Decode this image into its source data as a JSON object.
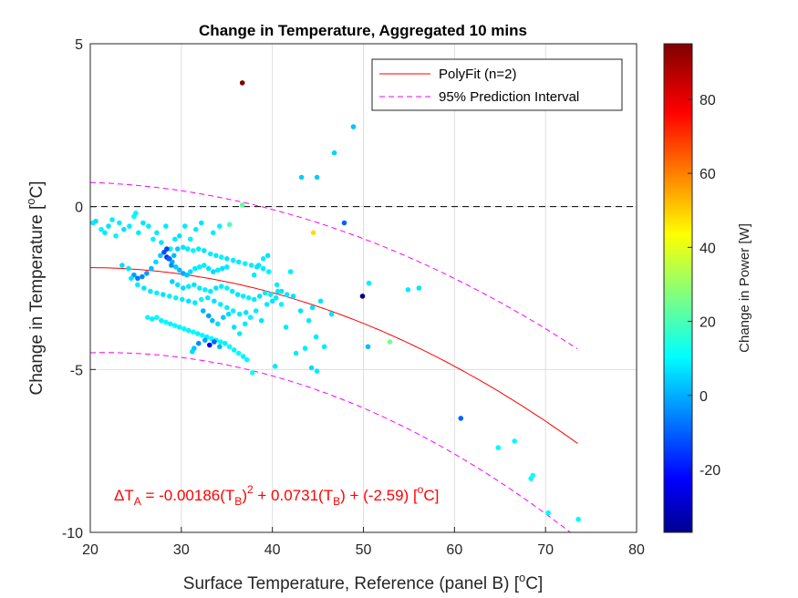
{
  "chart_data": {
    "type": "scatter",
    "title": "Change in Temperature, Aggregated 10 mins",
    "xlabel_text": "Surface Temperature, Reference (panel B) [",
    "xlabel_sup": "o",
    "xlabel_tail": "C]",
    "ylabel_text": "Change in Temperature [",
    "ylabel_sup": "o",
    "ylabel_tail": "C]",
    "xlim": [
      20,
      80
    ],
    "ylim": [
      -10,
      5
    ],
    "xticks": [
      "20",
      "30",
      "40",
      "50",
      "60",
      "70",
      "80"
    ],
    "yticks": [
      "-10",
      "-5",
      "0",
      "5"
    ],
    "grid": true,
    "legend_position": "top-right",
    "legend": [
      {
        "label": "PolyFit (n=2)",
        "color": "#ff0000",
        "style": "solid"
      },
      {
        "label": "95% Prediction Interval",
        "color": "#ff00ff",
        "style": "dashed"
      }
    ],
    "colorbar": {
      "label": "Change in Power [W]",
      "limits": [
        -37,
        95
      ],
      "ticks": [
        "-20",
        "0",
        "20",
        "40",
        "60",
        "80"
      ],
      "colormap": "jet"
    },
    "fit": {
      "a2": -0.00186,
      "a1": 0.0731,
      "a0": -2.59,
      "x_range": [
        20,
        73.5
      ],
      "pi_half_width": 2.55
    },
    "equation": {
      "p1": "ΔT",
      "s1": "A",
      "p2": " = -0.00186(T",
      "s2": "B",
      "p3": ")",
      "sup": "2",
      "p4": " + 0.0731(T",
      "s3": "B",
      "p5": ") + (-2.59)   [",
      "sup2": "o",
      "p6": "C]"
    },
    "reference_line_y": 0,
    "colors": {
      "fit": "#ff0000",
      "interval": "#ff00ff",
      "grid": "#dfdfdf",
      "zero_line": "#000000"
    },
    "points": [
      [
        20.3,
        -0.5,
        10
      ],
      [
        20.6,
        -0.45,
        9
      ],
      [
        21.2,
        -0.7,
        11
      ],
      [
        21.6,
        -0.8,
        10
      ],
      [
        22.0,
        -0.6,
        9
      ],
      [
        22.4,
        -0.4,
        10
      ],
      [
        22.8,
        -0.9,
        11
      ],
      [
        23.2,
        -0.5,
        10
      ],
      [
        23.7,
        -0.7,
        9
      ],
      [
        24.3,
        -0.6,
        10
      ],
      [
        24.8,
        -0.3,
        12
      ],
      [
        25.0,
        -0.2,
        11
      ],
      [
        25.3,
        -0.8,
        10
      ],
      [
        25.8,
        -0.5,
        9
      ],
      [
        26.4,
        -0.6,
        10
      ],
      [
        26.9,
        -1.0,
        11
      ],
      [
        27.3,
        -0.8,
        10
      ],
      [
        27.8,
        -1.1,
        9
      ],
      [
        28.3,
        -0.6,
        10
      ],
      [
        28.8,
        -1.3,
        11
      ],
      [
        29.3,
        -1.0,
        10
      ],
      [
        29.8,
        -0.9,
        9
      ],
      [
        30.4,
        -0.6,
        10
      ],
      [
        31.0,
        -1.0,
        11
      ],
      [
        31.6,
        -0.7,
        10
      ],
      [
        32.2,
        -0.5,
        9
      ],
      [
        33.5,
        -0.8,
        10
      ],
      [
        34.2,
        -0.6,
        11
      ],
      [
        35.3,
        -0.55,
        22
      ],
      [
        36.7,
        0.05,
        25
      ],
      [
        36.7,
        3.8,
        95
      ],
      [
        23.5,
        -1.8,
        8
      ],
      [
        24.2,
        -1.9,
        9
      ],
      [
        24.8,
        -2.1,
        0
      ],
      [
        25.2,
        -2.2,
        -5
      ],
      [
        25.7,
        -2.15,
        -3
      ],
      [
        26.2,
        -2.05,
        0
      ],
      [
        26.7,
        -1.9,
        4
      ],
      [
        27.2,
        -1.7,
        8
      ],
      [
        27.7,
        -1.5,
        6
      ],
      [
        28.1,
        -1.4,
        -10
      ],
      [
        28.4,
        -1.55,
        -15
      ],
      [
        28.7,
        -1.6,
        -5
      ],
      [
        29.0,
        -1.7,
        2
      ],
      [
        29.4,
        -1.85,
        6
      ],
      [
        29.8,
        -1.95,
        4
      ],
      [
        30.2,
        -2.05,
        1
      ],
      [
        30.6,
        -2.1,
        5
      ],
      [
        31.0,
        -2.0,
        8
      ],
      [
        31.5,
        -1.9,
        10
      ],
      [
        32.0,
        -1.85,
        11
      ],
      [
        32.5,
        -1.8,
        10
      ],
      [
        33.0,
        -1.9,
        9
      ],
      [
        33.5,
        -2.0,
        8
      ],
      [
        34.0,
        -1.95,
        10
      ],
      [
        34.5,
        -1.9,
        9
      ],
      [
        35.0,
        -1.85,
        10
      ],
      [
        28.4,
        -1.3,
        -12
      ],
      [
        28.6,
        -1.6,
        -8
      ],
      [
        28.9,
        -1.8,
        -2
      ],
      [
        29.2,
        -1.5,
        4
      ],
      [
        29.6,
        -1.3,
        6
      ],
      [
        30.2,
        -1.25,
        9
      ],
      [
        30.7,
        -1.3,
        10
      ],
      [
        31.3,
        -1.35,
        11
      ],
      [
        31.9,
        -1.3,
        10
      ],
      [
        32.5,
        -1.35,
        9
      ],
      [
        33.2,
        -1.45,
        10
      ],
      [
        33.8,
        -1.5,
        10
      ],
      [
        34.4,
        -1.55,
        11
      ],
      [
        35.0,
        -1.6,
        9
      ],
      [
        35.7,
        -1.65,
        10
      ],
      [
        36.3,
        -1.7,
        10
      ],
      [
        37.0,
        -1.75,
        11
      ],
      [
        37.7,
        -1.8,
        10
      ],
      [
        38.3,
        -1.85,
        9
      ],
      [
        39.0,
        -1.9,
        10
      ],
      [
        39.6,
        -2.0,
        11
      ],
      [
        24.5,
        -2.2,
        9
      ],
      [
        25.2,
        -2.4,
        10
      ],
      [
        25.9,
        -2.5,
        9
      ],
      [
        26.6,
        -2.6,
        10
      ],
      [
        27.3,
        -2.65,
        11
      ],
      [
        28.0,
        -2.7,
        9
      ],
      [
        28.7,
        -2.75,
        10
      ],
      [
        29.4,
        -2.8,
        11
      ],
      [
        30.1,
        -2.85,
        10
      ],
      [
        30.8,
        -2.9,
        9
      ],
      [
        31.5,
        -2.95,
        10
      ],
      [
        32.2,
        -2.85,
        11
      ],
      [
        32.9,
        -2.8,
        10
      ],
      [
        33.6,
        -2.9,
        9
      ],
      [
        34.3,
        -3.0,
        10
      ],
      [
        35.0,
        -3.1,
        10
      ],
      [
        35.7,
        -3.2,
        11
      ],
      [
        36.4,
        -3.3,
        10
      ],
      [
        37.1,
        -3.25,
        9
      ],
      [
        29.0,
        -2.3,
        7
      ],
      [
        29.6,
        -2.4,
        9
      ],
      [
        30.2,
        -2.5,
        8
      ],
      [
        30.8,
        -2.45,
        10
      ],
      [
        31.4,
        -2.4,
        9
      ],
      [
        32.0,
        -2.5,
        10
      ],
      [
        32.6,
        -2.55,
        11
      ],
      [
        33.2,
        -2.6,
        10
      ],
      [
        33.8,
        -2.5,
        9
      ],
      [
        34.4,
        -2.45,
        10
      ],
      [
        35.0,
        -2.5,
        11
      ],
      [
        35.6,
        -2.6,
        10
      ],
      [
        36.2,
        -2.7,
        9
      ],
      [
        36.8,
        -2.75,
        10
      ],
      [
        37.4,
        -2.8,
        11
      ],
      [
        38.0,
        -2.85,
        10
      ],
      [
        38.6,
        -2.75,
        9
      ],
      [
        39.2,
        -2.65,
        10
      ],
      [
        39.8,
        -2.7,
        11
      ],
      [
        40.4,
        -2.8,
        10
      ],
      [
        41.0,
        -2.6,
        9
      ],
      [
        41.6,
        -2.7,
        10
      ],
      [
        26.3,
        -3.4,
        12
      ],
      [
        26.8,
        -3.45,
        11
      ],
      [
        27.3,
        -3.4,
        12
      ],
      [
        27.8,
        -3.5,
        11
      ],
      [
        28.3,
        -3.55,
        12
      ],
      [
        28.8,
        -3.6,
        11
      ],
      [
        29.3,
        -3.65,
        12
      ],
      [
        29.8,
        -3.7,
        11
      ],
      [
        30.3,
        -3.75,
        12
      ],
      [
        30.8,
        -3.8,
        11
      ],
      [
        31.3,
        -3.85,
        12
      ],
      [
        31.8,
        -3.9,
        11
      ],
      [
        32.3,
        -3.95,
        12
      ],
      [
        32.8,
        -4.0,
        11
      ],
      [
        33.3,
        -4.05,
        12
      ],
      [
        33.8,
        -4.1,
        11
      ],
      [
        34.3,
        -4.15,
        12
      ],
      [
        34.8,
        -4.2,
        11
      ],
      [
        35.3,
        -4.3,
        12
      ],
      [
        35.8,
        -4.4,
        11
      ],
      [
        36.3,
        -4.5,
        12
      ],
      [
        36.8,
        -4.6,
        11
      ],
      [
        37.2,
        -4.7,
        12
      ],
      [
        37.8,
        -5.1,
        14
      ],
      [
        31.9,
        -4.2,
        -2
      ],
      [
        31.4,
        -4.35,
        5
      ],
      [
        31.2,
        -4.45,
        8
      ],
      [
        32.6,
        -4.1,
        1
      ],
      [
        33.1,
        -4.25,
        -22
      ],
      [
        33.6,
        -4.15,
        -8
      ],
      [
        34.2,
        -4.3,
        4
      ],
      [
        32.4,
        -3.2,
        3
      ],
      [
        33.0,
        -3.35,
        0
      ],
      [
        33.4,
        -3.5,
        4
      ],
      [
        34.0,
        -3.6,
        8
      ],
      [
        34.6,
        -3.4,
        6
      ],
      [
        35.2,
        -3.3,
        8
      ],
      [
        35.8,
        -3.7,
        9
      ],
      [
        36.4,
        -3.9,
        10
      ],
      [
        37.0,
        -3.6,
        10
      ],
      [
        37.6,
        -3.4,
        11
      ],
      [
        38.2,
        -3.2,
        10
      ],
      [
        38.8,
        -3.5,
        9
      ],
      [
        39.4,
        -3.0,
        10
      ],
      [
        40.0,
        -2.9,
        9
      ],
      [
        40.6,
        -2.6,
        10
      ],
      [
        38.0,
        -2.1,
        10
      ],
      [
        38.5,
        -1.8,
        9
      ],
      [
        39.0,
        -1.6,
        10
      ],
      [
        39.5,
        -1.5,
        9
      ],
      [
        41.5,
        -3.7,
        10
      ],
      [
        42.3,
        -2.75,
        9
      ],
      [
        42.6,
        -4.5,
        10
      ],
      [
        43.1,
        -3.2,
        9
      ],
      [
        44.0,
        -3.5,
        10
      ],
      [
        44.4,
        -3.1,
        9
      ],
      [
        44.8,
        -4.0,
        10
      ],
      [
        45.3,
        -2.9,
        9
      ],
      [
        45.7,
        -4.3,
        10
      ],
      [
        46.5,
        -3.3,
        9
      ],
      [
        43.6,
        -4.35,
        10
      ],
      [
        44.3,
        -4.95,
        8
      ],
      [
        44.9,
        -5.05,
        10
      ],
      [
        40.3,
        -4.9,
        10
      ],
      [
        43.2,
        0.9,
        6
      ],
      [
        44.9,
        0.9,
        6
      ],
      [
        46.8,
        1.65,
        7
      ],
      [
        48.9,
        2.45,
        5
      ],
      [
        47.9,
        -0.5,
        -8
      ],
      [
        44.5,
        -0.8,
        50
      ],
      [
        49.9,
        -2.75,
        -37
      ],
      [
        50.6,
        -2.35,
        11
      ],
      [
        52.9,
        -4.15,
        27
      ],
      [
        50.5,
        -4.3,
        4
      ],
      [
        54.9,
        -2.55,
        10
      ],
      [
        56.1,
        -2.5,
        9
      ],
      [
        60.7,
        -6.5,
        -8
      ],
      [
        64.8,
        -7.4,
        12
      ],
      [
        66.6,
        -7.2,
        12
      ],
      [
        68.4,
        -8.35,
        12
      ],
      [
        68.6,
        -8.25,
        13
      ],
      [
        70.3,
        -9.4,
        12
      ],
      [
        73.6,
        -9.6,
        12
      ],
      [
        42.0,
        -2.0,
        10
      ],
      [
        40.5,
        -2.4,
        10
      ],
      [
        41.0,
        -3.0,
        11
      ]
    ]
  }
}
